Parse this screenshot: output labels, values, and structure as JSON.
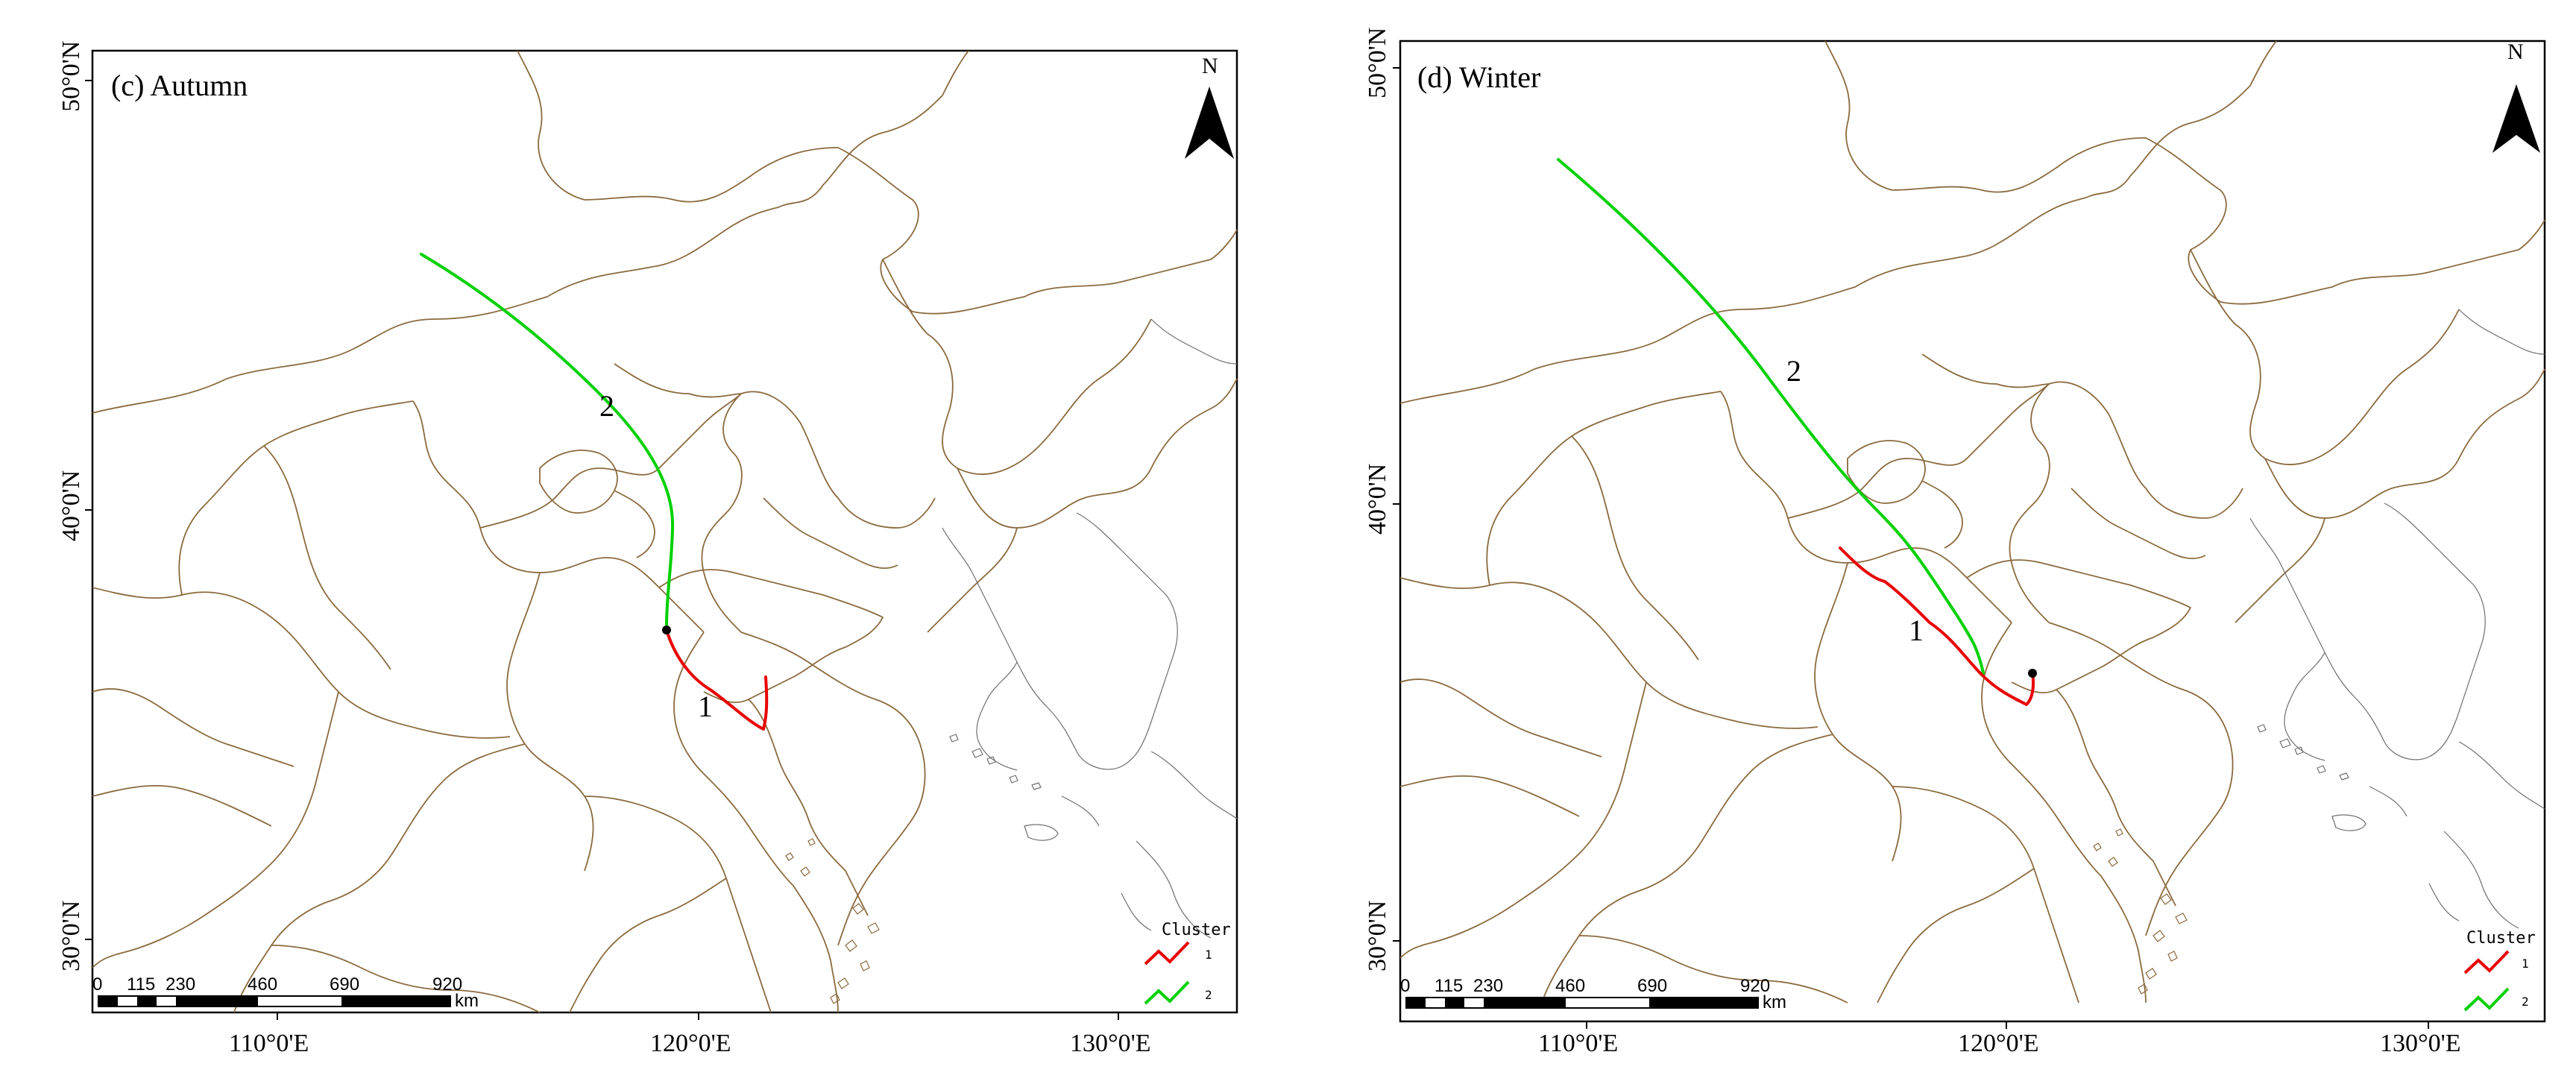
{
  "panels": [
    {
      "id": "c",
      "title": "(c) Autumn",
      "lat_labels": [
        "50°0'N",
        "40°0'N",
        "30°0'N"
      ],
      "lon_labels": [
        "110°0'E",
        "120°0'E",
        "130°0'E"
      ],
      "north_arrow_label": "N",
      "scale_bar": {
        "ticks": [
          "0",
          "115",
          "230",
          "460",
          "690",
          "920"
        ],
        "unit": "km"
      },
      "legend": {
        "title": "Cluster",
        "items": [
          {
            "label": "1",
            "color": "#e80000"
          },
          {
            "label": "2",
            "color": "#00d000"
          }
        ]
      },
      "trajectory_labels": [
        "1",
        "2"
      ]
    },
    {
      "id": "d",
      "title": "(d) Winter",
      "lat_labels": [
        "50°0'N",
        "40°0'N",
        "30°0'N"
      ],
      "lon_labels": [
        "110°0'E",
        "120°0'E",
        "130°0'E"
      ],
      "north_arrow_label": "N",
      "scale_bar": {
        "ticks": [
          "0",
          "115",
          "230",
          "460",
          "690",
          "920"
        ],
        "unit": "km"
      },
      "legend": {
        "title": "Cluster",
        "items": [
          {
            "label": "1",
            "color": "#e80000"
          },
          {
            "label": "2",
            "color": "#00d000"
          }
        ]
      },
      "trajectory_labels": [
        "1",
        "2"
      ]
    }
  ],
  "colors": {
    "boundary": "#8b6a3e",
    "coast": "#6f6f6f",
    "cluster_1": "#e80000",
    "cluster_2": "#00d000"
  }
}
